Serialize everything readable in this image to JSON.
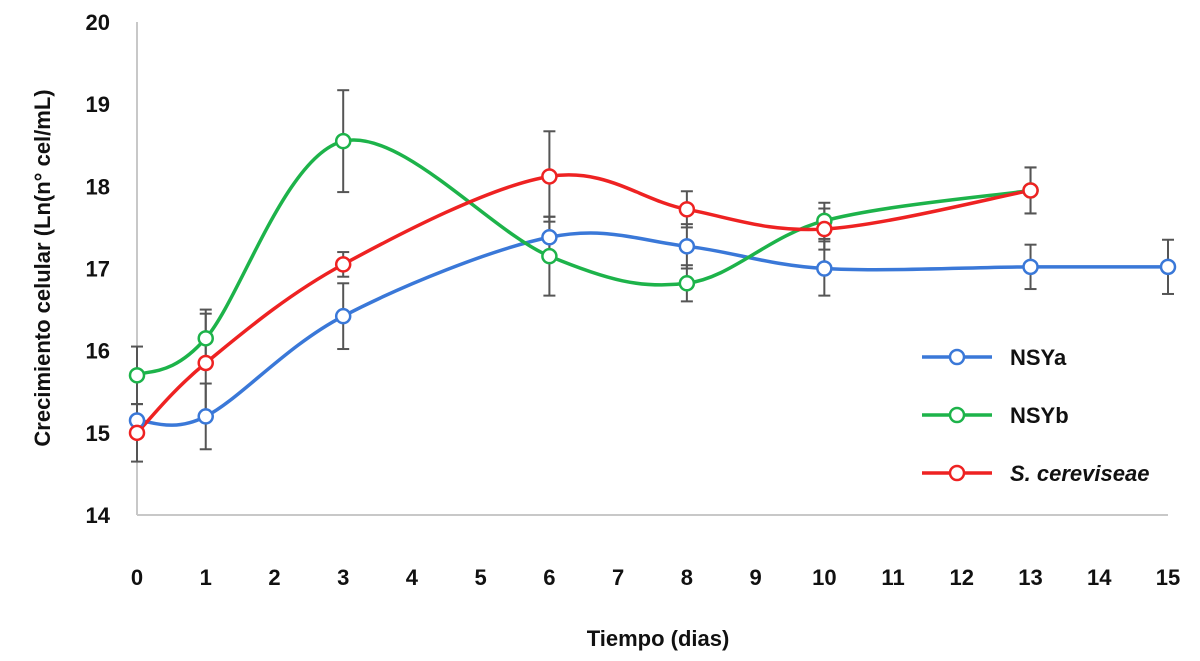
{
  "chart_data": {
    "type": "line",
    "title": "",
    "xlabel": "Tiempo (dias)",
    "ylabel": "Crecimiento celular (Ln(n° cel/mL)",
    "xlim": [
      0,
      15
    ],
    "ylim": [
      14,
      20
    ],
    "xticks": [
      "0",
      "1",
      "2",
      "3",
      "4",
      "5",
      "6",
      "7",
      "8",
      "9",
      "10",
      "11",
      "12",
      "13",
      "14",
      "15"
    ],
    "yticks": [
      "14",
      "15",
      "16",
      "17",
      "18",
      "19",
      "20"
    ],
    "grid": false,
    "legend_position": "right",
    "series": [
      {
        "name": "NSYa",
        "color": "#3a78d8",
        "x": [
          0,
          1,
          3,
          6,
          8,
          10,
          13,
          15
        ],
        "y": [
          15.15,
          15.2,
          16.42,
          17.38,
          17.27,
          17.0,
          17.02,
          17.02
        ],
        "error": [
          0.2,
          0.4,
          0.4,
          0.25,
          0.27,
          0.33,
          0.27,
          0.33
        ]
      },
      {
        "name": "NSYb",
        "color": "#1db34a",
        "x": [
          0,
          1,
          3,
          6,
          8,
          10,
          13
        ],
        "y": [
          15.7,
          16.15,
          18.55,
          17.15,
          16.82,
          17.58,
          17.95
        ],
        "error": [
          0.35,
          0.35,
          0.62,
          0.48,
          0.22,
          0.22,
          0.28
        ]
      },
      {
        "name": "S. cereviseae",
        "color": "#ee2222",
        "italic": true,
        "x": [
          0,
          1,
          3,
          6,
          8,
          10,
          13
        ],
        "y": [
          15.0,
          15.85,
          17.05,
          18.12,
          17.72,
          17.48,
          17.95
        ],
        "error": [
          0.35,
          0.6,
          0.15,
          0.55,
          0.22,
          0.25,
          0.28
        ]
      }
    ]
  }
}
